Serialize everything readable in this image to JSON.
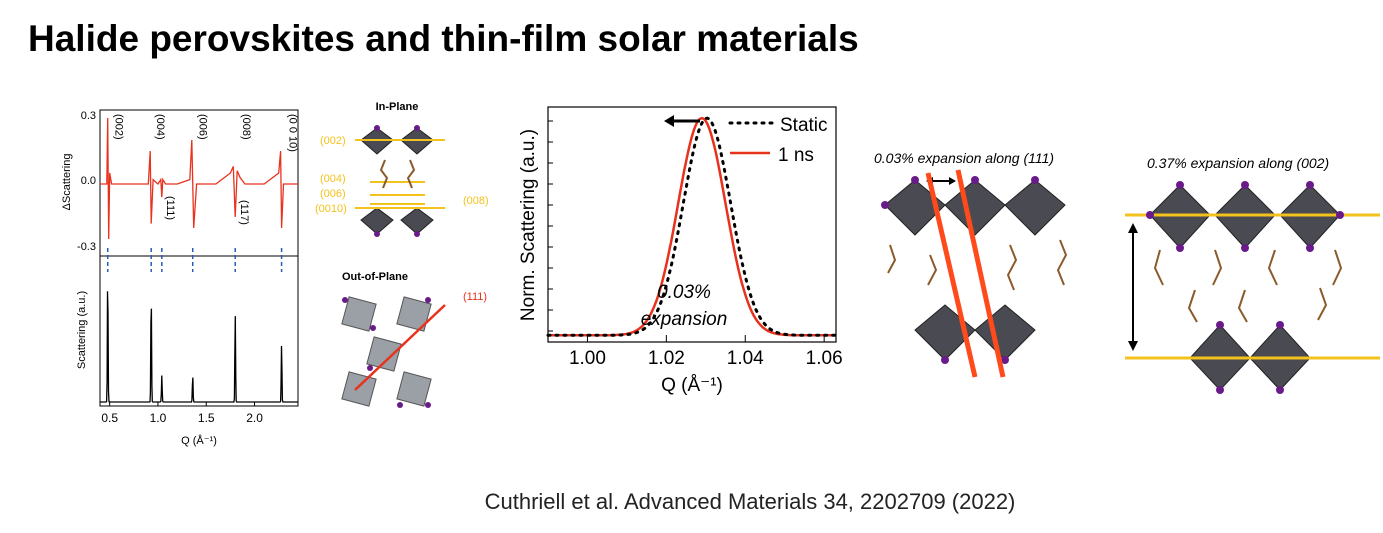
{
  "slide": {
    "title": "Halide perovskites and thin-film solar materials",
    "citation": "Cuthriell et al. Advanced Materials 34, 2202709 (2022)"
  },
  "colors": {
    "red": "#e8321e",
    "black": "#000000",
    "gold": "#f3c21d",
    "guide_blue": "#2a5bb8",
    "octahedron": "#4a4a52",
    "iodide": "#6a1b8a",
    "organic": "#8b5a2b"
  },
  "panels": {
    "in_plane": {
      "title": "In-Plane",
      "labels_left": [
        "(002)",
        "(004)",
        "(006)",
        "(0010)"
      ],
      "label_right": "(008)"
    },
    "out_of_plane": {
      "title": "Out-of-Plane",
      "label": "(111)"
    },
    "expansion_111": {
      "caption": "0.03% expansion along (111)"
    },
    "expansion_002": {
      "caption": "0.37% expansion along (002)"
    }
  },
  "chart_data": [
    {
      "type": "line",
      "subplots": [
        {
          "ylabel": "ΔScattering",
          "ylim": [
            -0.3,
            0.3
          ],
          "yticks": [
            "0.3",
            "0.0",
            "-0.3"
          ],
          "series": [
            {
              "color": "#e8321e",
              "x": [
                0.4,
                0.47,
                0.48,
                0.49,
                0.5,
                0.52,
                0.6,
                0.8,
                0.9,
                0.92,
                0.93,
                0.95,
                1.0,
                1.03,
                1.04,
                1.05,
                1.08,
                1.2,
                1.33,
                1.35,
                1.37,
                1.4,
                1.6,
                1.75,
                1.78,
                1.8,
                1.82,
                1.85,
                1.9,
                2.1,
                2.25,
                2.27,
                2.28,
                2.3,
                2.35,
                2.45
              ],
              "y": [
                0.0,
                0.0,
                0.3,
                -0.25,
                0.05,
                0.0,
                0.0,
                0.0,
                0.0,
                0.15,
                -0.18,
                0.02,
                0.0,
                0.02,
                -0.06,
                0.02,
                0.0,
                0.0,
                0.02,
                0.2,
                -0.2,
                0.0,
                0.0,
                0.05,
                0.08,
                -0.15,
                0.06,
                0.03,
                0.0,
                0.0,
                0.05,
                0.15,
                -0.2,
                0.0,
                0.0,
                0.0
              ]
            }
          ],
          "peak_labels": [
            "(002)",
            "(004)",
            "(006)",
            "(008)",
            "(0 0 10)",
            "(111)",
            "(117)"
          ]
        },
        {
          "ylabel": "Scattering (a.u.)",
          "xlabel": "Q (Å⁻¹)",
          "xlim": [
            0.4,
            2.45
          ],
          "xticks": [
            "0.5",
            "1.0",
            "1.5",
            "2.0"
          ],
          "series": [
            {
              "color": "#000000",
              "peaks": [
                {
                  "x": 0.48,
                  "height": 1.0
                },
                {
                  "x": 0.93,
                  "height": 0.86
                },
                {
                  "x": 1.04,
                  "height": 0.21
                },
                {
                  "x": 1.36,
                  "height": 0.21
                },
                {
                  "x": 1.8,
                  "height": 0.69
                },
                {
                  "x": 2.28,
                  "height": 0.45
                }
              ]
            }
          ]
        }
      ]
    },
    {
      "type": "line",
      "xlabel": "Q (Å⁻¹)",
      "ylabel": "Norm. Scattering (a.u.)",
      "xlim": [
        0.99,
        1.063
      ],
      "ylim": [
        0,
        1.05
      ],
      "xticks": [
        "1.00",
        "1.02",
        "1.04",
        "1.06"
      ],
      "annotation": "0.03%",
      "annotation_line2": "expansion",
      "series": [
        {
          "name": "Static",
          "style": "dotted",
          "color": "#000000",
          "center": 1.0303,
          "width": 0.0085
        },
        {
          "name": "1 ns",
          "style": "solid",
          "color": "#e8321e",
          "center": 1.029,
          "width": 0.0085
        }
      ],
      "arrow": "left"
    }
  ]
}
